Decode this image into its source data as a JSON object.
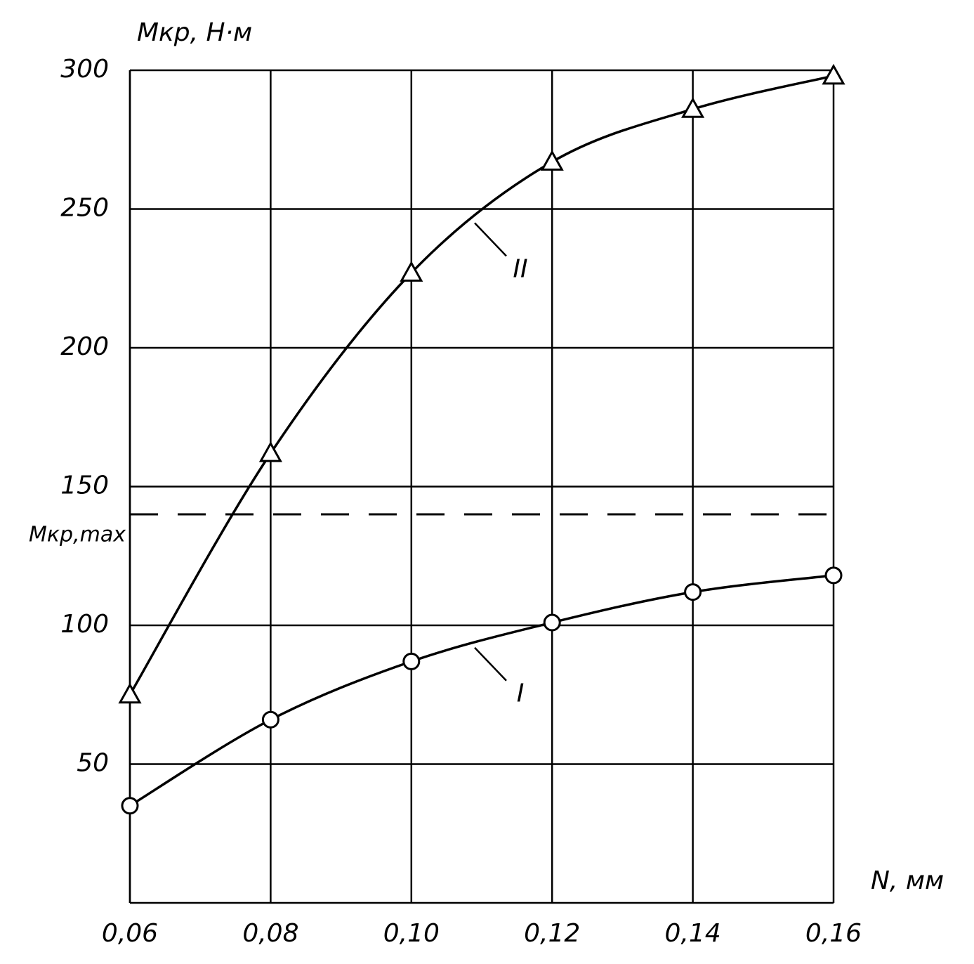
{
  "chart_data": {
    "type": "line",
    "y_label": "Mкр, Н·м",
    "x_label": "N, мм",
    "x": [
      0.06,
      0.08,
      0.1,
      0.12,
      0.14,
      0.16
    ],
    "series": [
      {
        "name": "I",
        "color": "#000000",
        "marker": "circle",
        "values": [
          35,
          66,
          87,
          101,
          112,
          118
        ]
      },
      {
        "name": "II",
        "color": "#000000",
        "marker": "triangle",
        "values": [
          75,
          162,
          227,
          267,
          286,
          298
        ]
      }
    ],
    "xlim": [
      0.06,
      0.16
    ],
    "xticks": [
      {
        "value": 0.06,
        "label": "0,06"
      },
      {
        "value": 0.08,
        "label": "0,08"
      },
      {
        "value": 0.1,
        "label": "0,10"
      },
      {
        "value": 0.12,
        "label": "0,12"
      },
      {
        "value": 0.14,
        "label": "0,14"
      },
      {
        "value": 0.16,
        "label": "0,16"
      }
    ],
    "ylim": [
      0,
      300
    ],
    "yticks": [
      50,
      100,
      150,
      200,
      250,
      300
    ],
    "grid": true,
    "reference_line": {
      "value": 140,
      "label": "Mкр,max"
    }
  }
}
